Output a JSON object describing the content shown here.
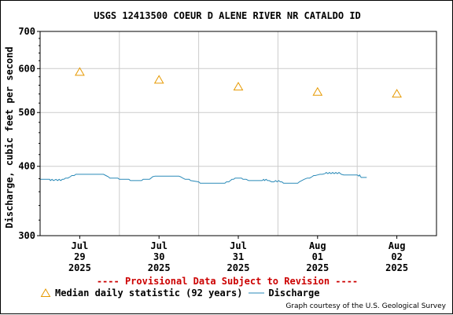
{
  "chart_data": {
    "type": "line",
    "title": "USGS 12413500 COEUR D ALENE RIVER NR CATALDO ID",
    "ylabel": "Discharge, cubic feet per second",
    "xlabel": "",
    "yscale": "log",
    "ylim": [
      300,
      700
    ],
    "yticks": [
      300,
      400,
      500,
      600,
      700
    ],
    "ytick_labels": [
      "300",
      "400",
      "500",
      "600",
      "700"
    ],
    "xlim_days": [
      28.5,
      33.5
    ],
    "xticks": [
      {
        "day": 29,
        "line1": "Jul",
        "line2": "29",
        "line3": "2025"
      },
      {
        "day": 30,
        "line1": "Jul",
        "line2": "30",
        "line3": "2025"
      },
      {
        "day": 31,
        "line1": "Jul",
        "line2": "31",
        "line3": "2025"
      },
      {
        "day": 32,
        "line1": "Aug",
        "line2": "01",
        "line3": "2025"
      },
      {
        "day": 33,
        "line1": "Aug",
        "line2": "02",
        "line3": "2025"
      }
    ],
    "grid": true,
    "series": [
      {
        "name": "Median daily statistic (92 years)",
        "marker": "triangle",
        "color": "#e69900",
        "x": [
          29,
          30,
          31,
          32,
          33
        ],
        "y": [
          592,
          573,
          557,
          545,
          541
        ]
      },
      {
        "name": "Discharge",
        "marker": "line",
        "color": "#2a8ab8",
        "points": [
          [
            28.5,
            379
          ],
          [
            28.62,
            379
          ],
          [
            28.63,
            377
          ],
          [
            28.65,
            379
          ],
          [
            28.67,
            377
          ],
          [
            28.7,
            379
          ],
          [
            28.72,
            377
          ],
          [
            28.74,
            379
          ],
          [
            28.76,
            377
          ],
          [
            28.78,
            379
          ],
          [
            28.8,
            379
          ],
          [
            28.82,
            381
          ],
          [
            28.85,
            381
          ],
          [
            28.88,
            383
          ],
          [
            28.9,
            385
          ],
          [
            28.93,
            385
          ],
          [
            28.95,
            387
          ],
          [
            29.3,
            387
          ],
          [
            29.33,
            385
          ],
          [
            29.36,
            383
          ],
          [
            29.38,
            381
          ],
          [
            29.48,
            381
          ],
          [
            29.5,
            379
          ],
          [
            29.62,
            379
          ],
          [
            29.64,
            377
          ],
          [
            29.78,
            377
          ],
          [
            29.8,
            379
          ],
          [
            29.88,
            379
          ],
          [
            29.9,
            381
          ],
          [
            29.92,
            383
          ],
          [
            29.95,
            384
          ],
          [
            30.25,
            384
          ],
          [
            30.27,
            383
          ],
          [
            30.3,
            381
          ],
          [
            30.33,
            379
          ],
          [
            30.38,
            379
          ],
          [
            30.4,
            377
          ],
          [
            30.5,
            375
          ],
          [
            30.52,
            373
          ],
          [
            30.83,
            373
          ],
          [
            30.85,
            375
          ],
          [
            30.88,
            375
          ],
          [
            30.9,
            377
          ],
          [
            30.92,
            379
          ],
          [
            30.94,
            379
          ],
          [
            30.96,
            381
          ],
          [
            31.04,
            381
          ],
          [
            31.06,
            379
          ],
          [
            31.1,
            379
          ],
          [
            31.13,
            377
          ],
          [
            31.3,
            377
          ],
          [
            31.32,
            379
          ],
          [
            31.33,
            377
          ],
          [
            31.35,
            379
          ],
          [
            31.37,
            377
          ],
          [
            31.39,
            377
          ],
          [
            31.42,
            375
          ],
          [
            31.45,
            375
          ],
          [
            31.47,
            377
          ],
          [
            31.49,
            375
          ],
          [
            31.51,
            377
          ],
          [
            31.53,
            375
          ],
          [
            31.55,
            375
          ],
          [
            31.57,
            373
          ],
          [
            31.75,
            373
          ],
          [
            31.77,
            375
          ],
          [
            31.8,
            377
          ],
          [
            31.83,
            379
          ],
          [
            31.87,
            381
          ],
          [
            31.9,
            381
          ],
          [
            31.93,
            383
          ],
          [
            31.95,
            385
          ],
          [
            31.97,
            385
          ],
          [
            32.0,
            386
          ],
          [
            32.03,
            387
          ],
          [
            32.06,
            387
          ],
          [
            32.09,
            388
          ],
          [
            32.11,
            390
          ],
          [
            32.13,
            388
          ],
          [
            32.15,
            390
          ],
          [
            32.17,
            388
          ],
          [
            32.19,
            390
          ],
          [
            32.21,
            388
          ],
          [
            32.23,
            390
          ],
          [
            32.25,
            388
          ],
          [
            32.27,
            390
          ],
          [
            32.3,
            387
          ],
          [
            32.33,
            386
          ],
          [
            32.5,
            386
          ],
          [
            32.52,
            384
          ],
          [
            32.53,
            386
          ],
          [
            32.55,
            382
          ],
          [
            32.62,
            382
          ]
        ]
      }
    ],
    "legend_placement": "bottom"
  },
  "provisional_note": "---- Provisional Data Subject to Revision ----",
  "credit": "Graph courtesy of the U.S. Geological Survey"
}
